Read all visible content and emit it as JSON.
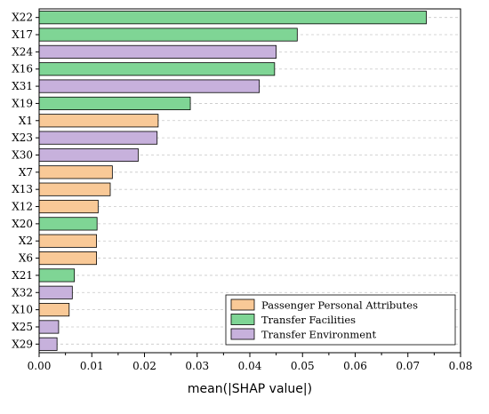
{
  "chart_data": {
    "type": "bar",
    "orientation": "horizontal",
    "xlabel": "mean(|SHAP value|)",
    "ylabel": "",
    "title": "",
    "xlim": [
      0,
      0.08
    ],
    "xticks": [
      0.0,
      0.01,
      0.02,
      0.03,
      0.04,
      0.05,
      0.06,
      0.07,
      0.08
    ],
    "xtick_labels": [
      "0.00",
      "0.01",
      "0.02",
      "0.03",
      "0.04",
      "0.05",
      "0.06",
      "0.07",
      "0.08"
    ],
    "grid": "dashed horizontal",
    "legend_position": "bottom-right",
    "groups": [
      {
        "key": "personal",
        "name": "Passenger Personal Attributes",
        "color": "#f9c997"
      },
      {
        "key": "facilities",
        "name": "Transfer Facilities",
        "color": "#7fd595"
      },
      {
        "key": "environment",
        "name": "Transfer Environment",
        "color": "#c7b1dc"
      }
    ],
    "bars": [
      {
        "label": "X22",
        "value": 0.0735,
        "group": "facilities"
      },
      {
        "label": "X17",
        "value": 0.049,
        "group": "facilities"
      },
      {
        "label": "X24",
        "value": 0.045,
        "group": "environment"
      },
      {
        "label": "X16",
        "value": 0.0447,
        "group": "facilities"
      },
      {
        "label": "X31",
        "value": 0.0418,
        "group": "environment"
      },
      {
        "label": "X19",
        "value": 0.0287,
        "group": "facilities"
      },
      {
        "label": "X1",
        "value": 0.0226,
        "group": "personal"
      },
      {
        "label": "X23",
        "value": 0.0224,
        "group": "environment"
      },
      {
        "label": "X30",
        "value": 0.0188,
        "group": "environment"
      },
      {
        "label": "X7",
        "value": 0.0139,
        "group": "personal"
      },
      {
        "label": "X13",
        "value": 0.0135,
        "group": "personal"
      },
      {
        "label": "X12",
        "value": 0.0112,
        "group": "personal"
      },
      {
        "label": "X20",
        "value": 0.011,
        "group": "facilities"
      },
      {
        "label": "X2",
        "value": 0.0109,
        "group": "personal"
      },
      {
        "label": "X6",
        "value": 0.0109,
        "group": "personal"
      },
      {
        "label": "X21",
        "value": 0.0067,
        "group": "facilities"
      },
      {
        "label": "X32",
        "value": 0.0063,
        "group": "environment"
      },
      {
        "label": "X10",
        "value": 0.0057,
        "group": "personal"
      },
      {
        "label": "X25",
        "value": 0.0037,
        "group": "environment"
      },
      {
        "label": "X29",
        "value": 0.0034,
        "group": "environment"
      }
    ]
  }
}
